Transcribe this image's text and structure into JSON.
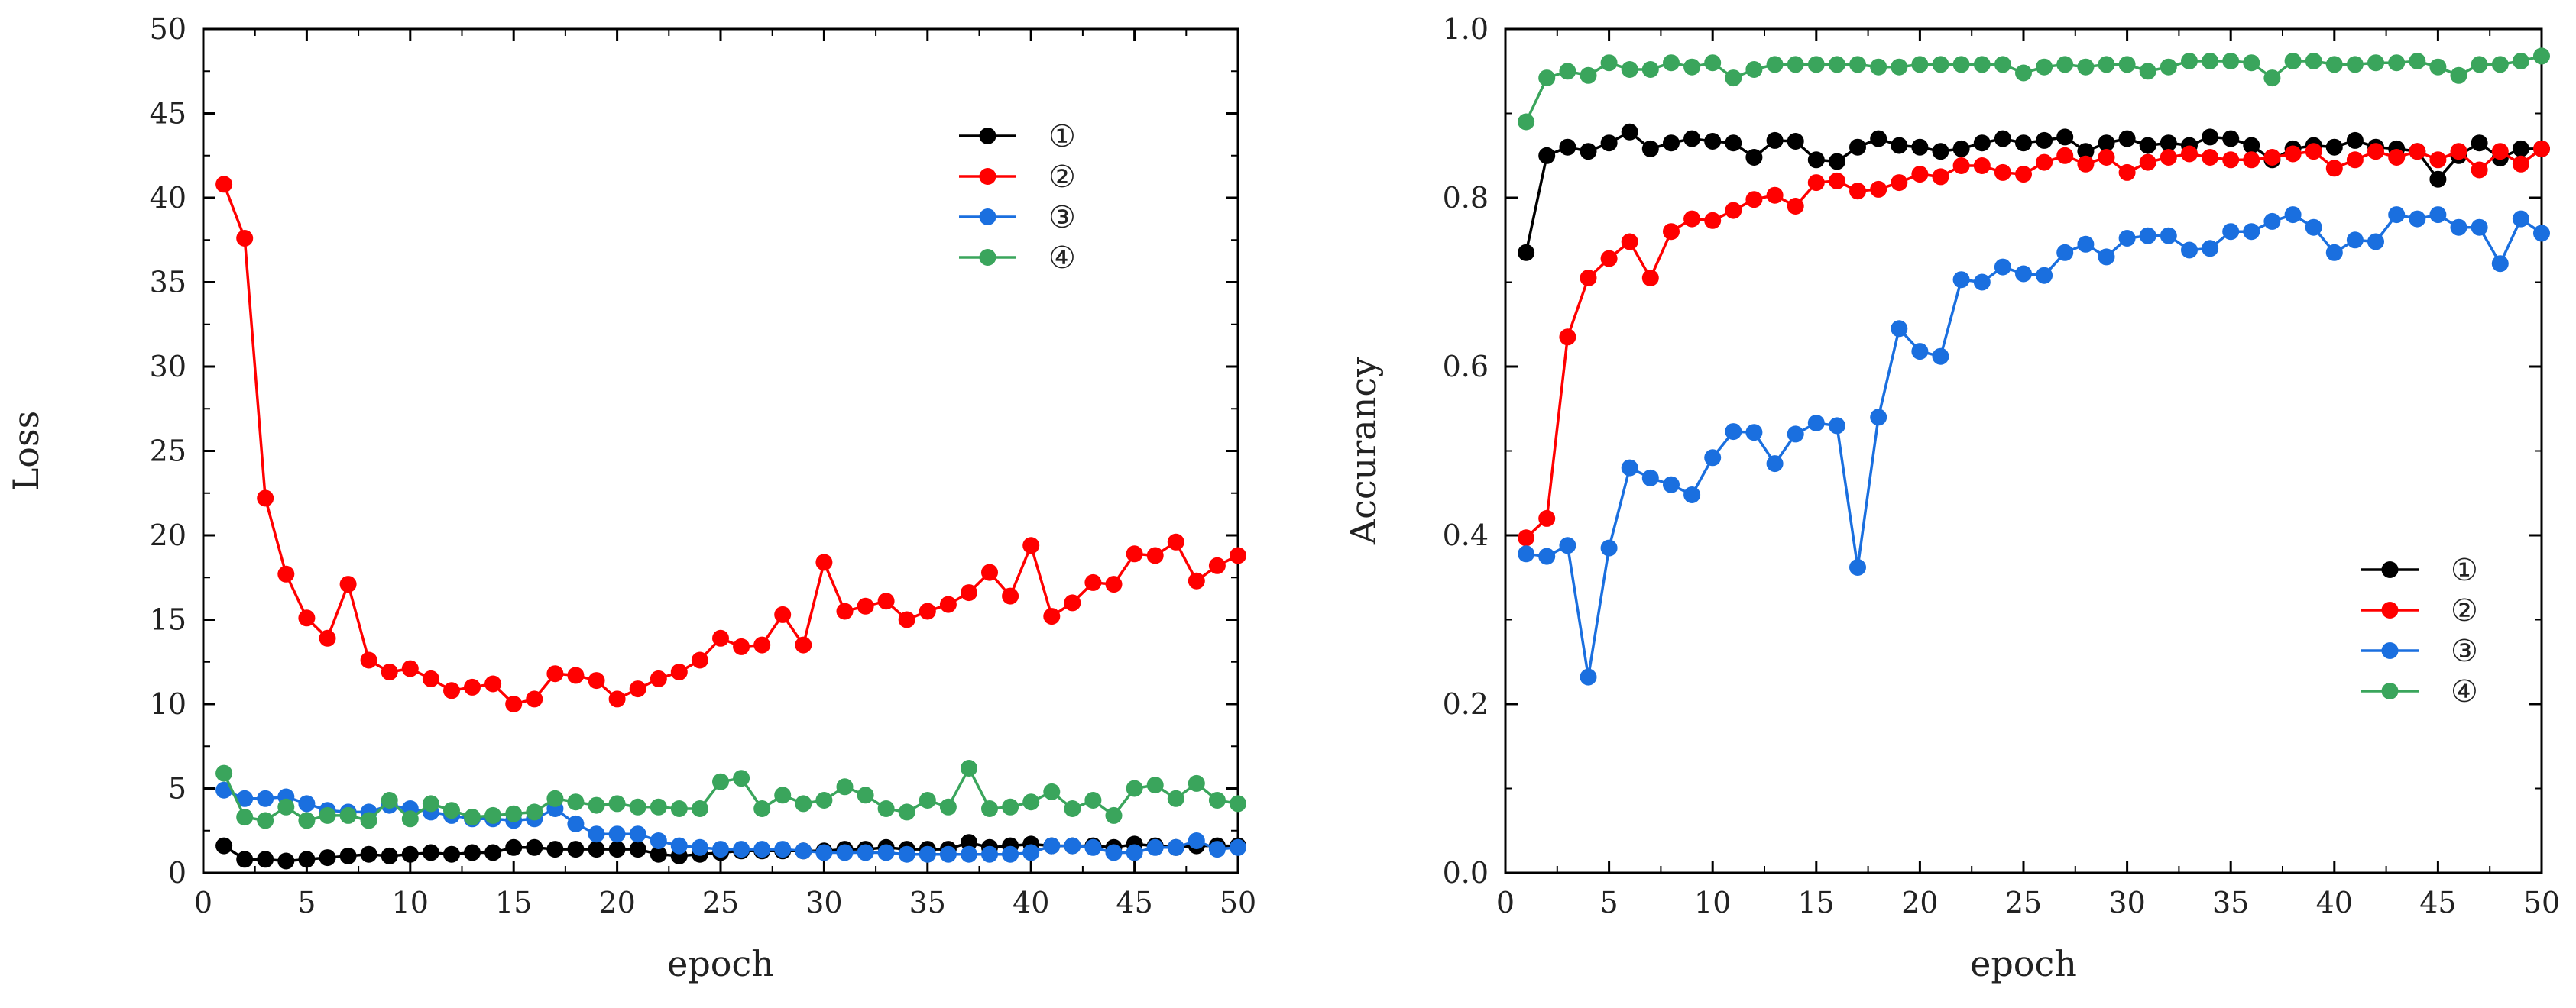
{
  "chart_data": [
    {
      "type": "line",
      "xlabel": "epoch",
      "ylabel": "Loss",
      "xlim": [
        0,
        50
      ],
      "ylim": [
        0,
        50
      ],
      "xticks": [
        0,
        5,
        10,
        15,
        20,
        25,
        30,
        35,
        40,
        45,
        50
      ],
      "yticks": [
        0,
        5,
        10,
        15,
        20,
        25,
        30,
        35,
        40,
        45,
        50
      ],
      "x_tick_labels": [
        "0",
        "5",
        "10",
        "15",
        "20",
        "25",
        "30",
        "35",
        "40",
        "45",
        "50"
      ],
      "y_tick_labels": [
        "0",
        "5",
        "10",
        "15",
        "20",
        "25",
        "30",
        "35",
        "40",
        "45",
        "50"
      ],
      "legend_position": "upper-right",
      "x": [
        1,
        2,
        3,
        4,
        5,
        6,
        7,
        8,
        9,
        10,
        11,
        12,
        13,
        14,
        15,
        16,
        17,
        18,
        19,
        20,
        21,
        22,
        23,
        24,
        25,
        26,
        27,
        28,
        29,
        30,
        31,
        32,
        33,
        34,
        35,
        36,
        37,
        38,
        39,
        40,
        41,
        42,
        43,
        44,
        45,
        46,
        47,
        48,
        49,
        50
      ],
      "series": [
        {
          "name": "①",
          "color": "#000000",
          "values": [
            1.6,
            0.8,
            0.8,
            0.7,
            0.8,
            0.9,
            1.0,
            1.1,
            1.0,
            1.1,
            1.2,
            1.1,
            1.2,
            1.2,
            1.5,
            1.5,
            1.4,
            1.4,
            1.4,
            1.4,
            1.4,
            1.1,
            1.0,
            1.1,
            1.2,
            1.3,
            1.3,
            1.3,
            1.3,
            1.3,
            1.4,
            1.4,
            1.5,
            1.4,
            1.4,
            1.4,
            1.8,
            1.5,
            1.6,
            1.7,
            1.6,
            1.6,
            1.6,
            1.5,
            1.7,
            1.6,
            1.5,
            1.6,
            1.6,
            1.6
          ]
        },
        {
          "name": "②",
          "color": "#ff0000",
          "values": [
            40.8,
            37.6,
            22.2,
            17.7,
            15.1,
            13.9,
            17.1,
            12.6,
            11.9,
            12.1,
            11.5,
            10.8,
            11.0,
            11.2,
            10.0,
            10.3,
            11.8,
            11.7,
            11.4,
            10.3,
            10.9,
            11.5,
            11.9,
            12.6,
            13.9,
            13.4,
            13.5,
            15.3,
            13.5,
            18.4,
            15.5,
            15.8,
            16.1,
            15.0,
            15.5,
            15.9,
            16.6,
            17.8,
            16.4,
            19.4,
            15.2,
            16.0,
            17.2,
            17.1,
            18.9,
            18.8,
            19.6,
            17.3,
            18.2,
            18.8
          ]
        },
        {
          "name": "③",
          "color": "#1a6fdf",
          "values": [
            4.9,
            4.4,
            4.4,
            4.5,
            4.1,
            3.7,
            3.6,
            3.6,
            4.0,
            3.8,
            3.6,
            3.4,
            3.2,
            3.2,
            3.1,
            3.2,
            3.8,
            2.9,
            2.3,
            2.3,
            2.3,
            1.9,
            1.6,
            1.5,
            1.4,
            1.4,
            1.4,
            1.4,
            1.3,
            1.2,
            1.2,
            1.2,
            1.2,
            1.1,
            1.1,
            1.1,
            1.1,
            1.1,
            1.1,
            1.2,
            1.6,
            1.6,
            1.5,
            1.2,
            1.2,
            1.5,
            1.5,
            1.9,
            1.4,
            1.5
          ]
        },
        {
          "name": "④",
          "color": "#3aa55c",
          "values": [
            5.9,
            3.3,
            3.1,
            3.9,
            3.1,
            3.4,
            3.4,
            3.1,
            4.3,
            3.2,
            4.1,
            3.7,
            3.3,
            3.4,
            3.5,
            3.6,
            4.4,
            4.2,
            4.0,
            4.1,
            3.9,
            3.9,
            3.8,
            3.8,
            5.4,
            5.6,
            3.8,
            4.6,
            4.1,
            4.3,
            5.1,
            4.6,
            3.8,
            3.6,
            4.3,
            3.9,
            6.2,
            3.8,
            3.9,
            4.2,
            4.8,
            3.8,
            4.3,
            3.4,
            5.0,
            5.2,
            4.4,
            5.3,
            4.3,
            4.1
          ]
        }
      ]
    },
    {
      "type": "line",
      "xlabel": "epoch",
      "ylabel": "Accurancy",
      "xlim": [
        0,
        50
      ],
      "ylim": [
        0,
        1
      ],
      "xticks": [
        0,
        5,
        10,
        15,
        20,
        25,
        30,
        35,
        40,
        45,
        50
      ],
      "yticks": [
        0,
        0.2,
        0.4,
        0.6,
        0.8,
        1.0
      ],
      "x_tick_labels": [
        "0",
        "5",
        "10",
        "15",
        "20",
        "25",
        "30",
        "35",
        "40",
        "45",
        "50"
      ],
      "y_tick_labels": [
        "0.0",
        "0.2",
        "0.4",
        "0.6",
        "0.8",
        "1.0"
      ],
      "legend_position": "lower-right",
      "x": [
        1,
        2,
        3,
        4,
        5,
        6,
        7,
        8,
        9,
        10,
        11,
        12,
        13,
        14,
        15,
        16,
        17,
        18,
        19,
        20,
        21,
        22,
        23,
        24,
        25,
        26,
        27,
        28,
        29,
        30,
        31,
        32,
        33,
        34,
        35,
        36,
        37,
        38,
        39,
        40,
        41,
        42,
        43,
        44,
        45,
        46,
        47,
        48,
        49,
        50
      ],
      "series": [
        {
          "name": "①",
          "color": "#000000",
          "values": [
            0.735,
            0.85,
            0.86,
            0.855,
            0.865,
            0.878,
            0.858,
            0.865,
            0.87,
            0.867,
            0.865,
            0.848,
            0.868,
            0.867,
            0.845,
            0.843,
            0.86,
            0.87,
            0.862,
            0.86,
            0.855,
            0.858,
            0.865,
            0.87,
            0.865,
            0.868,
            0.872,
            0.855,
            0.865,
            0.87,
            0.862,
            0.865,
            0.862,
            0.872,
            0.87,
            0.862,
            0.845,
            0.858,
            0.862,
            0.86,
            0.868,
            0.86,
            0.858,
            0.855,
            0.822,
            0.85,
            0.865,
            0.847,
            0.858,
            0.858
          ]
        },
        {
          "name": "②",
          "color": "#ff0000",
          "values": [
            0.397,
            0.42,
            0.635,
            0.705,
            0.728,
            0.748,
            0.705,
            0.76,
            0.775,
            0.773,
            0.785,
            0.798,
            0.803,
            0.79,
            0.818,
            0.82,
            0.808,
            0.81,
            0.818,
            0.828,
            0.825,
            0.838,
            0.838,
            0.83,
            0.828,
            0.842,
            0.85,
            0.84,
            0.848,
            0.83,
            0.842,
            0.848,
            0.852,
            0.848,
            0.845,
            0.845,
            0.848,
            0.852,
            0.855,
            0.835,
            0.845,
            0.855,
            0.848,
            0.855,
            0.845,
            0.855,
            0.833,
            0.855,
            0.84,
            0.858
          ]
        },
        {
          "name": "③",
          "color": "#1a6fdf",
          "values": [
            0.378,
            0.375,
            0.388,
            0.232,
            0.385,
            0.48,
            0.468,
            0.46,
            0.448,
            0.492,
            0.523,
            0.522,
            0.485,
            0.52,
            0.533,
            0.53,
            0.362,
            0.54,
            0.645,
            0.618,
            0.612,
            0.703,
            0.7,
            0.718,
            0.71,
            0.708,
            0.735,
            0.745,
            0.73,
            0.752,
            0.755,
            0.755,
            0.738,
            0.74,
            0.76,
            0.76,
            0.772,
            0.78,
            0.765,
            0.735,
            0.75,
            0.748,
            0.78,
            0.775,
            0.78,
            0.765,
            0.765,
            0.722,
            0.775,
            0.758
          ]
        },
        {
          "name": "④",
          "color": "#3aa55c",
          "values": [
            0.89,
            0.942,
            0.95,
            0.945,
            0.96,
            0.952,
            0.952,
            0.96,
            0.955,
            0.96,
            0.942,
            0.952,
            0.958,
            0.958,
            0.958,
            0.958,
            0.958,
            0.955,
            0.955,
            0.958,
            0.958,
            0.958,
            0.958,
            0.958,
            0.948,
            0.955,
            0.958,
            0.955,
            0.958,
            0.958,
            0.95,
            0.955,
            0.962,
            0.962,
            0.962,
            0.96,
            0.942,
            0.962,
            0.962,
            0.958,
            0.958,
            0.96,
            0.96,
            0.962,
            0.955,
            0.945,
            0.958,
            0.958,
            0.962,
            0.968
          ]
        }
      ]
    }
  ]
}
